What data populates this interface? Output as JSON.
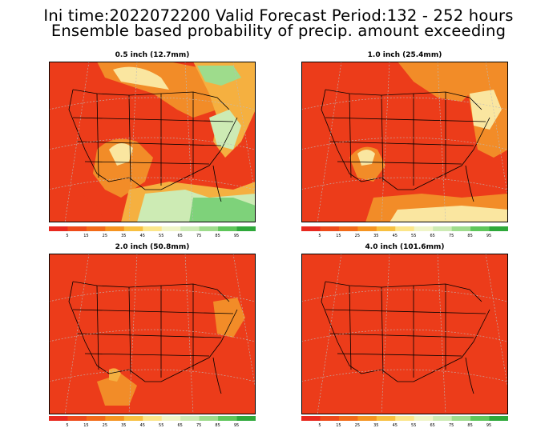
{
  "header": {
    "line1": "Ini time:2022072200  Valid Forecast Period:132 - 252 hours",
    "line2": "Ensemble based probability of precip. amount exceeding"
  },
  "panels": [
    {
      "id": "p1",
      "title": "0.5 inch (12.7mm)"
    },
    {
      "id": "p2",
      "title": "1.0 inch (25.4mm)"
    },
    {
      "id": "p3",
      "title": "2.0 inch (50.8mm)"
    },
    {
      "id": "p4",
      "title": "4.0 inch (101.6mm)"
    }
  ],
  "colorbar": {
    "labels": [
      "5",
      "15",
      "25",
      "35",
      "45",
      "55",
      "65",
      "75",
      "85",
      "95"
    ],
    "colors": [
      "#e8281e",
      "#ee4a1a",
      "#f26a18",
      "#f59420",
      "#f8c040",
      "#fce68a",
      "#f0f5c8",
      "#cdebb4",
      "#9edc8c",
      "#5ec65a",
      "#2ea83a"
    ]
  },
  "colors": {
    "dominant_red": "#ec3c1a",
    "orange": "#f28c28",
    "light_yellow": "#fae6a0",
    "light_green": "#b4e6a0",
    "green": "#7ed27a"
  }
}
